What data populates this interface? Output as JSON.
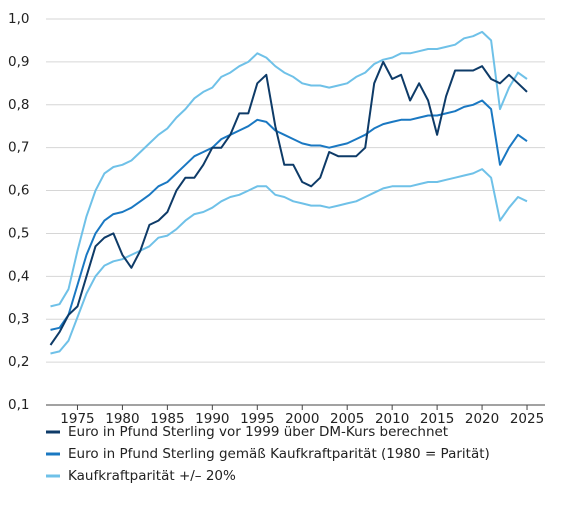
{
  "chart_data": {
    "type": "line",
    "x": [
      1972,
      1973,
      1974,
      1975,
      1976,
      1977,
      1978,
      1979,
      1980,
      1981,
      1982,
      1983,
      1984,
      1985,
      1986,
      1987,
      1988,
      1989,
      1990,
      1991,
      1992,
      1993,
      1994,
      1995,
      1996,
      1997,
      1998,
      1999,
      2000,
      2001,
      2002,
      2003,
      2004,
      2005,
      2006,
      2007,
      2008,
      2009,
      2010,
      2011,
      2012,
      2013,
      2014,
      2015,
      2016,
      2017,
      2018,
      2019,
      2020,
      2021,
      2022,
      2023,
      2024,
      2025
    ],
    "series": [
      {
        "name": "Euro in Pfund Sterling vor 1999 über DM-Kurs berechnet",
        "color": "#0e3b68",
        "values": [
          0.24,
          0.27,
          0.31,
          0.33,
          0.4,
          0.47,
          0.49,
          0.5,
          0.45,
          0.42,
          0.46,
          0.52,
          0.53,
          0.55,
          0.6,
          0.63,
          0.63,
          0.66,
          0.7,
          0.7,
          0.73,
          0.78,
          0.78,
          0.85,
          0.87,
          0.75,
          0.66,
          0.66,
          0.62,
          0.61,
          0.63,
          0.69,
          0.68,
          0.68,
          0.68,
          0.7,
          0.85,
          0.9,
          0.86,
          0.87,
          0.81,
          0.85,
          0.81,
          0.73,
          0.82,
          0.88,
          0.88,
          0.88,
          0.89,
          0.86,
          0.85,
          0.87,
          0.85,
          0.83
        ]
      },
      {
        "name": "Euro in Pfund Sterling gemäß Kaufkraftparität (1980 = Parität)",
        "color": "#1a78c2",
        "values": [
          0.275,
          0.28,
          0.31,
          0.38,
          0.45,
          0.5,
          0.53,
          0.545,
          0.55,
          0.56,
          0.575,
          0.59,
          0.61,
          0.62,
          0.64,
          0.66,
          0.68,
          0.69,
          0.7,
          0.72,
          0.73,
          0.74,
          0.75,
          0.765,
          0.76,
          0.74,
          0.73,
          0.72,
          0.71,
          0.705,
          0.705,
          0.7,
          0.705,
          0.71,
          0.72,
          0.73,
          0.745,
          0.755,
          0.76,
          0.765,
          0.765,
          0.77,
          0.775,
          0.775,
          0.78,
          0.785,
          0.795,
          0.8,
          0.81,
          0.79,
          0.66,
          0.7,
          0.73,
          0.715
        ]
      },
      {
        "name": "Kaufkraftparität +/– 20%",
        "color": "#6fc1e8",
        "upper": [
          0.33,
          0.335,
          0.37,
          0.46,
          0.54,
          0.6,
          0.64,
          0.655,
          0.66,
          0.67,
          0.69,
          0.71,
          0.73,
          0.745,
          0.77,
          0.79,
          0.815,
          0.83,
          0.84,
          0.865,
          0.875,
          0.89,
          0.9,
          0.92,
          0.91,
          0.89,
          0.875,
          0.865,
          0.85,
          0.845,
          0.845,
          0.84,
          0.845,
          0.85,
          0.865,
          0.875,
          0.895,
          0.905,
          0.91,
          0.92,
          0.92,
          0.925,
          0.93,
          0.93,
          0.935,
          0.94,
          0.955,
          0.96,
          0.97,
          0.95,
          0.79,
          0.84,
          0.875,
          0.86
        ],
        "lower": [
          0.22,
          0.225,
          0.25,
          0.305,
          0.36,
          0.4,
          0.425,
          0.435,
          0.44,
          0.45,
          0.46,
          0.47,
          0.49,
          0.495,
          0.51,
          0.53,
          0.545,
          0.55,
          0.56,
          0.575,
          0.585,
          0.59,
          0.6,
          0.61,
          0.61,
          0.59,
          0.585,
          0.575,
          0.57,
          0.565,
          0.565,
          0.56,
          0.565,
          0.57,
          0.575,
          0.585,
          0.595,
          0.605,
          0.61,
          0.61,
          0.61,
          0.615,
          0.62,
          0.62,
          0.625,
          0.63,
          0.635,
          0.64,
          0.65,
          0.63,
          0.53,
          0.56,
          0.585,
          0.575
        ]
      }
    ],
    "xlim": [
      1971.5,
      2027
    ],
    "xticks": [
      1975,
      1980,
      1985,
      1990,
      1995,
      2000,
      2005,
      2010,
      2015,
      2020,
      2025
    ],
    "ylim": [
      0.1,
      1.0
    ],
    "yticks": [
      {
        "value": 0.1,
        "label": "0,1"
      },
      {
        "value": 0.2,
        "label": "0,2"
      },
      {
        "value": 0.3,
        "label": "0,3"
      },
      {
        "value": 0.4,
        "label": "0,4"
      },
      {
        "value": 0.5,
        "label": "0,5"
      },
      {
        "value": 0.6,
        "label": "0,6"
      },
      {
        "value": 0.7,
        "label": "0,7"
      },
      {
        "value": 0.8,
        "label": "0,8"
      },
      {
        "value": 0.9,
        "label": "0,9"
      },
      {
        "value": 1.0,
        "label": "1,0"
      }
    ],
    "grid": true
  }
}
